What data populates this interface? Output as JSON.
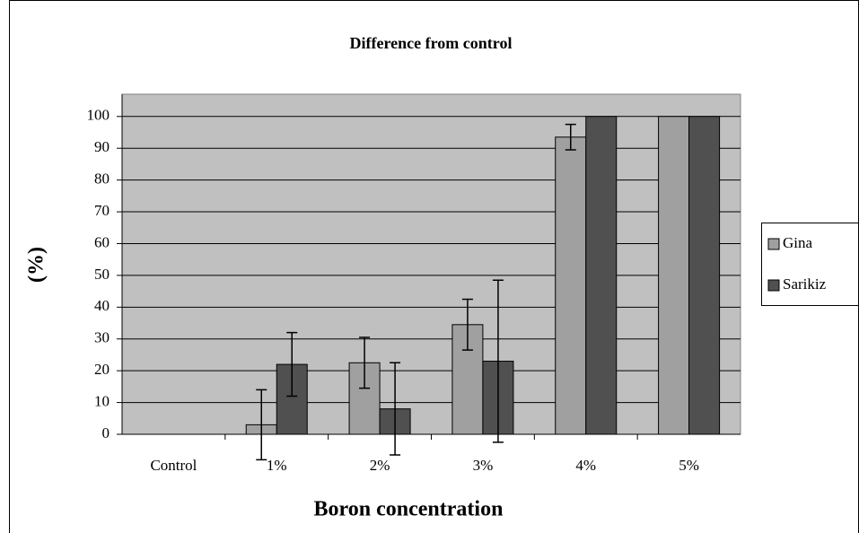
{
  "chart_data": {
    "type": "bar",
    "title": "Difference from control",
    "x_label": "Boron concentration",
    "y_label": "(%)",
    "categories": [
      "Control",
      "1%",
      "2%",
      "3%",
      "4%",
      "5%"
    ],
    "series": [
      {
        "name": "Gina",
        "color": "#a0a0a0",
        "values": [
          0,
          3,
          22.5,
          34.5,
          93.5,
          100
        ],
        "errors": [
          null,
          11,
          8,
          8,
          4,
          null
        ]
      },
      {
        "name": "Sarikiz",
        "color": "#505050",
        "values": [
          0,
          22,
          8,
          23,
          100,
          100
        ],
        "errors": [
          null,
          10,
          14.5,
          25.5,
          null,
          null
        ]
      }
    ],
    "ylim": [
      0,
      107
    ],
    "yticks": [
      0,
      10,
      20,
      30,
      40,
      50,
      60,
      70,
      80,
      90,
      100
    ],
    "grid": true,
    "legend": "right",
    "plot_background": "#c0c0c0"
  }
}
